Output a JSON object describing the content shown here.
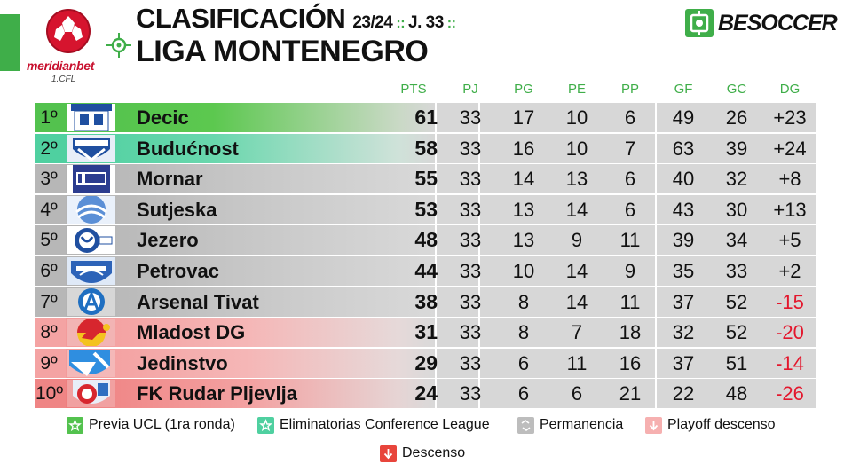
{
  "header": {
    "title": "CLASIFICACIÓN",
    "season": "23/24",
    "separator": "::",
    "round": "J. 33",
    "league": "LIGA MONTENEGRO",
    "sponsor": "meridianbet",
    "sponsor_sub": "1.CFL",
    "brand": "BESOCCER"
  },
  "columns": [
    "PTS",
    "PJ",
    "PG",
    "PE",
    "PP",
    "GF",
    "GC",
    "DG"
  ],
  "colors": {
    "accent": "#3fae49",
    "ucl": "#53c24e",
    "conference": "#4fd0a0",
    "permanencia": "#b7b7b7",
    "playoff": "#f4a3a3",
    "descenso": "#f08383",
    "negative": "#e3172d"
  },
  "rows": [
    {
      "pos": "1º",
      "team": "Decic",
      "pts": "61",
      "pj": "33",
      "pg": "17",
      "pe": "10",
      "pp": "6",
      "gf": "49",
      "gc": "26",
      "dg": "+23",
      "zone": "ucl"
    },
    {
      "pos": "2º",
      "team": "Budućnost",
      "pts": "58",
      "pj": "33",
      "pg": "16",
      "pe": "10",
      "pp": "7",
      "gf": "63",
      "gc": "39",
      "dg": "+24",
      "zone": "conference"
    },
    {
      "pos": "3º",
      "team": "Mornar",
      "pts": "55",
      "pj": "33",
      "pg": "14",
      "pe": "13",
      "pp": "6",
      "gf": "40",
      "gc": "32",
      "dg": "+8",
      "zone": "permanencia"
    },
    {
      "pos": "4º",
      "team": "Sutjeska",
      "pts": "53",
      "pj": "33",
      "pg": "13",
      "pe": "14",
      "pp": "6",
      "gf": "43",
      "gc": "30",
      "dg": "+13",
      "zone": "permanencia"
    },
    {
      "pos": "5º",
      "team": "Jezero",
      "pts": "48",
      "pj": "33",
      "pg": "13",
      "pe": "9",
      "pp": "11",
      "gf": "39",
      "gc": "34",
      "dg": "+5",
      "zone": "permanencia"
    },
    {
      "pos": "6º",
      "team": "Petrovac",
      "pts": "44",
      "pj": "33",
      "pg": "10",
      "pe": "14",
      "pp": "9",
      "gf": "35",
      "gc": "33",
      "dg": "+2",
      "zone": "permanencia"
    },
    {
      "pos": "7º",
      "team": "Arsenal Tivat",
      "pts": "38",
      "pj": "33",
      "pg": "8",
      "pe": "14",
      "pp": "11",
      "gf": "37",
      "gc": "52",
      "dg": "-15",
      "zone": "permanencia"
    },
    {
      "pos": "8º",
      "team": "Mladost DG",
      "pts": "31",
      "pj": "33",
      "pg": "8",
      "pe": "7",
      "pp": "18",
      "gf": "32",
      "gc": "52",
      "dg": "-20",
      "zone": "playoff"
    },
    {
      "pos": "9º",
      "team": "Jedinstvo",
      "pts": "29",
      "pj": "33",
      "pg": "6",
      "pe": "11",
      "pp": "16",
      "gf": "37",
      "gc": "51",
      "dg": "-14",
      "zone": "playoff"
    },
    {
      "pos": "10º",
      "team": "FK Rudar Pljevlja",
      "pts": "24",
      "pj": "33",
      "pg": "6",
      "pe": "6",
      "pp": "21",
      "gf": "22",
      "gc": "48",
      "dg": "-26",
      "zone": "descenso"
    }
  ],
  "legend": [
    {
      "label": "Previa UCL (1ra ronda)",
      "zone": "ucl",
      "icon": "star-icon"
    },
    {
      "label": "Eliminatorias Conference League",
      "zone": "conference",
      "icon": "star-icon"
    },
    {
      "label": "Permanencia",
      "zone": "permanencia",
      "icon": "arrows-icon"
    },
    {
      "label": "Playoff descenso",
      "zone": "playoff",
      "icon": "down-arrow-icon"
    },
    {
      "label": "Descenso",
      "zone": "descenso",
      "icon": "down-arrow-icon"
    }
  ]
}
